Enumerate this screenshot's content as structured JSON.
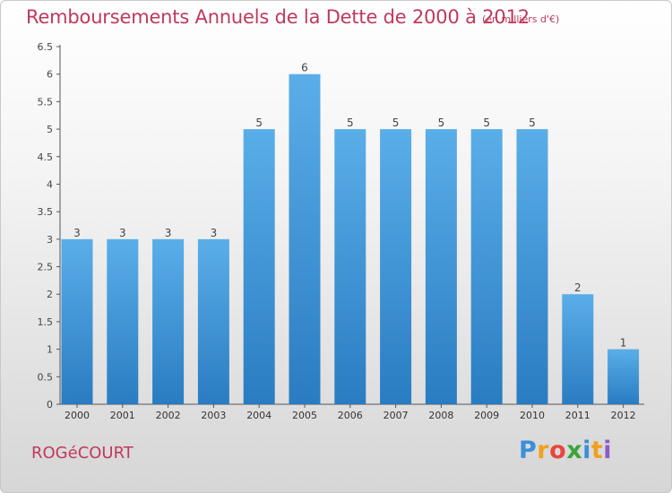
{
  "title": "Remboursements Annuels de la Dette de 2000 à 2012",
  "unit_note": "(en milliers d'€)",
  "commune": "ROGéCOURT",
  "brand": {
    "letters": [
      "P",
      "r",
      "o",
      "x",
      "i",
      "t",
      "i"
    ],
    "colors": [
      "#3a8fd9",
      "#f0a020",
      "#e8463e",
      "#3aa33a",
      "#3a8fd9",
      "#f0a020",
      "#8a5cc8"
    ]
  },
  "colors": {
    "title": "#c0395c",
    "bar_light": "#5aaee8",
    "bar_dark": "#2a7cc2",
    "axis": "#444444"
  },
  "chart_data": {
    "type": "bar",
    "categories": [
      "2000",
      "2001",
      "2002",
      "2003",
      "2004",
      "2005",
      "2006",
      "2007",
      "2008",
      "2009",
      "2010",
      "2011",
      "2012"
    ],
    "values": [
      3,
      3,
      3,
      3,
      5,
      6,
      5,
      5,
      5,
      5,
      5,
      2,
      1
    ],
    "data_labels": [
      "3",
      "3",
      "3",
      "3",
      "5",
      "6",
      "5",
      "5",
      "5",
      "5",
      "5",
      "2",
      "1"
    ],
    "yticks": [
      "0",
      "0.5",
      "1",
      "1.5",
      "2",
      "2.5",
      "3",
      "3.5",
      "4",
      "4.5",
      "5",
      "5.5",
      "6",
      "6.5"
    ],
    "ylim": [
      0,
      6.5
    ],
    "grid": false,
    "legend": "none"
  }
}
